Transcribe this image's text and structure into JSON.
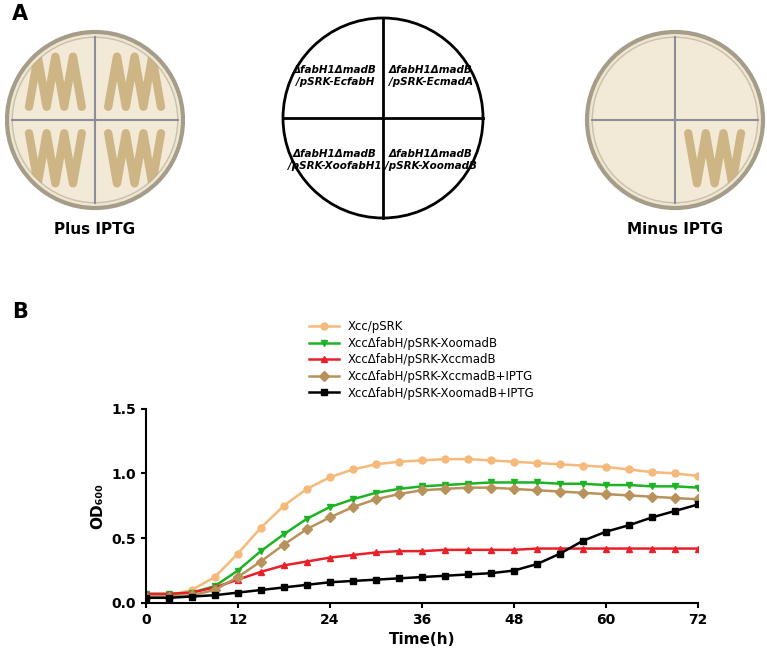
{
  "panel_a": {
    "panel_labels": [
      "A",
      "B"
    ],
    "plates": [
      {
        "label": "Plus IPTG",
        "growth": [
          true,
          true,
          true,
          true
        ]
      },
      {
        "label": "Minus IPTG",
        "growth": [
          false,
          false,
          false,
          true
        ]
      }
    ],
    "key": [
      [
        "ΔfabH1ΔmadB",
        "/pSRK-EcfabH"
      ],
      [
        "ΔfabH1ΔmadB",
        "/pSRK-EcmadA"
      ],
      [
        "ΔfabH1ΔmadB",
        "/pSRK-XoofabH1"
      ],
      [
        "ΔfabH1ΔmadB",
        "/pSRK-XoomadB"
      ]
    ]
  },
  "chart_data": {
    "type": "line",
    "x_label": "Time(h)",
    "y_label": "OD₆₀₀",
    "x": [
      0,
      3,
      6,
      9,
      12,
      15,
      18,
      21,
      24,
      27,
      30,
      33,
      36,
      39,
      42,
      45,
      48,
      51,
      54,
      57,
      60,
      63,
      66,
      69,
      72
    ],
    "series": [
      {
        "name": "Xcc/pSRK",
        "color": "#F5B97A",
        "marker": "circle",
        "values": [
          0.05,
          0.06,
          0.1,
          0.2,
          0.38,
          0.58,
          0.75,
          0.88,
          0.97,
          1.03,
          1.07,
          1.09,
          1.1,
          1.11,
          1.11,
          1.1,
          1.09,
          1.08,
          1.07,
          1.06,
          1.05,
          1.03,
          1.01,
          1.0,
          0.98
        ]
      },
      {
        "name": "XccΔfabH/pSRK-XoomadB",
        "color": "#1DB325",
        "marker": "triangle_down",
        "values": [
          0.07,
          0.07,
          0.08,
          0.13,
          0.25,
          0.4,
          0.53,
          0.65,
          0.74,
          0.8,
          0.85,
          0.88,
          0.9,
          0.91,
          0.92,
          0.93,
          0.93,
          0.93,
          0.92,
          0.92,
          0.91,
          0.91,
          0.9,
          0.9,
          0.89
        ]
      },
      {
        "name": "XccΔfabH/pSRK-XccmadB",
        "color": "#E8202A",
        "marker": "triangle_up",
        "values": [
          0.07,
          0.07,
          0.08,
          0.12,
          0.18,
          0.24,
          0.29,
          0.32,
          0.35,
          0.37,
          0.39,
          0.4,
          0.4,
          0.41,
          0.41,
          0.41,
          0.41,
          0.42,
          0.42,
          0.42,
          0.42,
          0.42,
          0.42,
          0.42,
          0.42
        ]
      },
      {
        "name": "XccΔfabH/pSRK-XccmadB+IPTG",
        "color": "#B8925A",
        "marker": "diamond",
        "values": [
          0.05,
          0.05,
          0.06,
          0.1,
          0.2,
          0.32,
          0.45,
          0.57,
          0.66,
          0.74,
          0.8,
          0.84,
          0.87,
          0.88,
          0.89,
          0.89,
          0.88,
          0.87,
          0.86,
          0.85,
          0.84,
          0.83,
          0.82,
          0.81,
          0.8
        ]
      },
      {
        "name": "XccΔfabH/pSRK-XoomadB+IPTG",
        "color": "#000000",
        "marker": "square",
        "values": [
          0.04,
          0.04,
          0.05,
          0.06,
          0.08,
          0.1,
          0.12,
          0.14,
          0.16,
          0.17,
          0.18,
          0.19,
          0.2,
          0.21,
          0.22,
          0.23,
          0.25,
          0.3,
          0.38,
          0.48,
          0.55,
          0.6,
          0.66,
          0.71,
          0.76
        ]
      }
    ],
    "xlim": [
      0,
      72
    ],
    "xticks": [
      0,
      12,
      24,
      36,
      48,
      60,
      72
    ],
    "ylim": [
      0,
      1.5
    ],
    "yticks": [
      {
        "value": 0,
        "label": "0.0"
      },
      0.5,
      1.0,
      1.5
    ],
    "legend": "top",
    "grid": false
  }
}
